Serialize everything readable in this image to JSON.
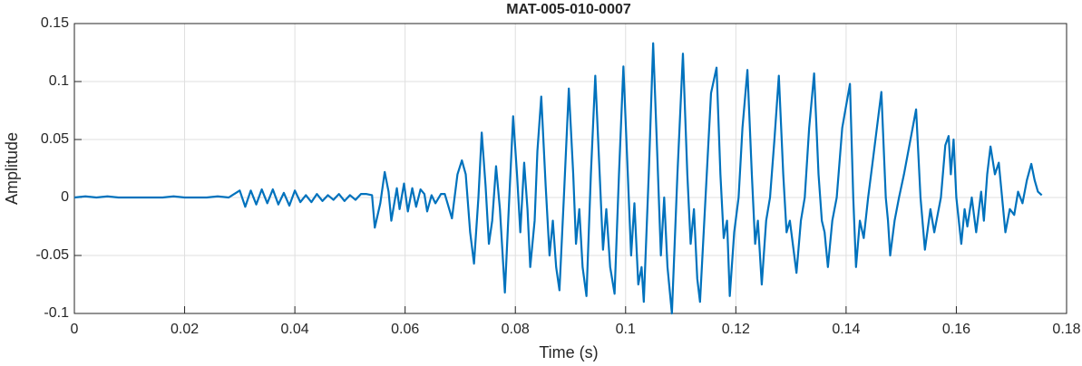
{
  "chart_data": {
    "type": "line",
    "title": "MAT-005-010-0007",
    "xlabel": "Time (s)",
    "ylabel": "Amplitude",
    "color": "#0072bd",
    "grid": true,
    "xlim": [
      0,
      0.18
    ],
    "xticks": [
      0,
      0.02,
      0.04,
      0.06,
      0.08,
      0.1,
      0.12,
      0.14,
      0.16,
      0.18
    ],
    "ylim": [
      -0.1,
      0.15
    ],
    "yticks": [
      -0.1,
      -0.05,
      0,
      0.05,
      0.1,
      0.15
    ],
    "x": [
      0,
      0.002,
      0.004,
      0.006,
      0.008,
      0.01,
      0.012,
      0.014,
      0.016,
      0.018,
      0.02,
      0.022,
      0.024,
      0.026,
      0.028,
      0.03,
      0.031,
      0.032,
      0.033,
      0.034,
      0.035,
      0.036,
      0.037,
      0.038,
      0.039,
      0.04,
      0.041,
      0.042,
      0.043,
      0.044,
      0.045,
      0.046,
      0.047,
      0.048,
      0.049,
      0.05,
      0.051,
      0.052,
      0.053,
      0.054,
      0.0545,
      0.0555,
      0.0563,
      0.057,
      0.0575,
      0.0585,
      0.059,
      0.0598,
      0.0605,
      0.0613,
      0.062,
      0.0628,
      0.0635,
      0.064,
      0.0648,
      0.0655,
      0.0665,
      0.0672,
      0.0685,
      0.0695,
      0.0703,
      0.071,
      0.0718,
      0.0725,
      0.0733,
      0.0739,
      0.0746,
      0.0752,
      0.0758,
      0.0765,
      0.0772,
      0.0781,
      0.0789,
      0.0796,
      0.0803,
      0.0809,
      0.0816,
      0.0822,
      0.0827,
      0.0835,
      0.084,
      0.0847,
      0.0855,
      0.0862,
      0.0868,
      0.0874,
      0.088,
      0.0888,
      0.0897,
      0.0905,
      0.091,
      0.0916,
      0.0922,
      0.0929,
      0.0937,
      0.0945,
      0.0953,
      0.0959,
      0.0965,
      0.0972,
      0.098,
      0.0988,
      0.0996,
      0.1004,
      0.101,
      0.1016,
      0.1023,
      0.1029,
      0.1033,
      0.1042,
      0.105,
      0.1058,
      0.1064,
      0.107,
      0.1076,
      0.1084,
      0.1094,
      0.1104,
      0.1112,
      0.1118,
      0.1124,
      0.113,
      0.1135,
      0.1145,
      0.1155,
      0.1165,
      0.1172,
      0.1178,
      0.1184,
      0.1189,
      0.1197,
      0.1205,
      0.1212,
      0.1221,
      0.1229,
      0.1235,
      0.124,
      0.1247,
      0.1255,
      0.1262,
      0.127,
      0.1278,
      0.1286,
      0.1292,
      0.1298,
      0.131,
      0.1318,
      0.1325,
      0.1333,
      0.1342,
      0.135,
      0.1356,
      0.1361,
      0.1367,
      0.1375,
      0.1383,
      0.1393,
      0.1407,
      0.1413,
      0.1418,
      0.1425,
      0.1432,
      0.144,
      0.1448,
      0.1464,
      0.1472,
      0.1476,
      0.148,
      0.1488,
      0.1496,
      0.1505,
      0.1527,
      0.1535,
      0.1543,
      0.1553,
      0.156,
      0.1572,
      0.158,
      0.1586,
      0.159,
      0.1595,
      0.16,
      0.1609,
      0.1615,
      0.162,
      0.1628,
      0.1636,
      0.1645,
      0.165,
      0.1656,
      0.1662,
      0.167,
      0.1677,
      0.1683,
      0.1689,
      0.1697,
      0.1705,
      0.1712,
      0.172,
      0.1728,
      0.1736,
      0.1742,
      0.1748,
      0.1755
    ],
    "values": [
      0,
      0.001,
      0,
      0.001,
      0,
      0,
      0,
      0,
      0,
      0.001,
      0,
      0,
      0,
      0.001,
      0,
      0.006,
      -0.008,
      0.006,
      -0.006,
      0.007,
      -0.005,
      0.007,
      -0.006,
      0.004,
      -0.007,
      0.006,
      -0.004,
      0.002,
      -0.004,
      0.003,
      -0.003,
      0.002,
      -0.002,
      0.003,
      -0.003,
      0.002,
      -0.002,
      0.003,
      0.003,
      0.002,
      -0.026,
      -0.005,
      0.022,
      0.005,
      -0.02,
      0.008,
      -0.01,
      0.012,
      -0.012,
      0.008,
      -0.008,
      0.007,
      0.003,
      -0.012,
      0.002,
      -0.005,
      0.003,
      0.003,
      -0.018,
      0.02,
      0.032,
      0.02,
      -0.03,
      -0.057,
      0,
      0.056,
      0.01,
      -0.04,
      -0.02,
      0.027,
      -0.01,
      -0.082,
      0,
      0.07,
      0.02,
      -0.03,
      0.03,
      -0.01,
      -0.06,
      -0.02,
      0.04,
      0.087,
      0.01,
      -0.05,
      -0.02,
      -0.06,
      -0.08,
      0,
      0.094,
      0.02,
      -0.04,
      -0.01,
      -0.06,
      -0.085,
      0.02,
      0.105,
      0.02,
      -0.045,
      -0.01,
      -0.06,
      -0.083,
      0.02,
      0.113,
      0.02,
      -0.05,
      -0.005,
      -0.075,
      -0.06,
      -0.09,
      0.02,
      0.133,
      0.03,
      -0.05,
      0,
      -0.06,
      -0.1,
      0.02,
      0.124,
      0.02,
      -0.04,
      -0.01,
      -0.07,
      -0.09,
      0,
      0.09,
      0.112,
      0.02,
      -0.035,
      -0.02,
      -0.085,
      -0.03,
      0,
      0.06,
      0.11,
      0.02,
      -0.04,
      -0.02,
      -0.075,
      -0.02,
      0,
      0.05,
      0.105,
      0.02,
      -0.03,
      -0.02,
      -0.065,
      -0.02,
      0,
      0.06,
      0.107,
      0.02,
      -0.02,
      -0.03,
      -0.06,
      -0.02,
      0,
      0.06,
      0.098,
      0,
      -0.06,
      -0.02,
      -0.035,
      0,
      0.03,
      0.091,
      0,
      -0.02,
      -0.05,
      -0.02,
      0,
      0.02,
      0.076,
      0,
      -0.045,
      -0.01,
      -0.03,
      0,
      0.045,
      0.053,
      0.02,
      0.05,
      0,
      -0.04,
      -0.01,
      -0.025,
      0,
      -0.03,
      0.005,
      -0.02,
      0.02,
      0.044,
      0.02,
      0.03,
      0,
      -0.03,
      -0.01,
      -0.015,
      0.005,
      -0.005,
      0.015,
      0.029,
      0.015,
      0.005,
      0.002
    ]
  }
}
